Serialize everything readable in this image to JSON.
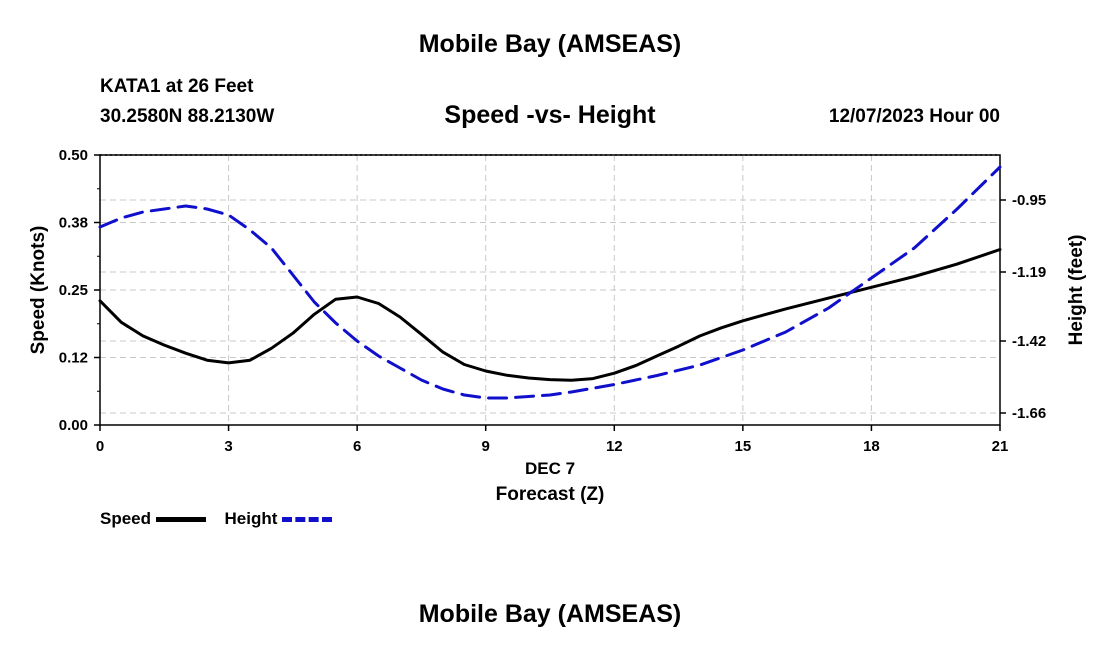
{
  "header": {
    "title": "Mobile Bay (AMSEAS)",
    "station": "KATA1 at 26 Feet",
    "coords": "30.2580N  88.2130W",
    "chart_title": "Speed -vs- Height",
    "datetime": "12/07/2023 Hour 00"
  },
  "footer": {
    "title": "Mobile Bay (AMSEAS)"
  },
  "legend": {
    "speed_label": "Speed",
    "height_label": "Height"
  },
  "colors": {
    "speed": "#000000",
    "height": "#1010cc",
    "grid": "#c8c8c8"
  },
  "chart_data": {
    "type": "line",
    "title": "Speed -vs- Height",
    "xlabel": "Forecast (Z)",
    "date_label": "DEC 7",
    "ylabel": "Speed (Knots)",
    "y2label": "Height (feet)",
    "xlim": [
      0,
      21
    ],
    "ylim": [
      0,
      0.5
    ],
    "y2lim": [
      -1.7,
      -0.8
    ],
    "x_ticks": [
      0,
      3,
      6,
      9,
      12,
      15,
      18,
      21
    ],
    "y_ticks": [
      "0.00",
      "0.12",
      "0.25",
      "0.38",
      "0.50"
    ],
    "y_tick_values": [
      0,
      0.125,
      0.25,
      0.375,
      0.5
    ],
    "y2_ticks": [
      "-0.95",
      "-1.19",
      "-1.42",
      "-1.66"
    ],
    "y2_tick_values": [
      -0.95,
      -1.19,
      -1.42,
      -1.66
    ],
    "grid": true,
    "series": [
      {
        "name": "Speed",
        "axis": "left",
        "x": [
          0,
          0.5,
          1,
          1.5,
          2,
          2.5,
          3,
          3.5,
          4,
          4.5,
          5,
          5.5,
          6,
          6.5,
          7,
          7.5,
          8,
          8.5,
          9,
          9.5,
          10,
          10.5,
          11,
          11.5,
          12,
          12.5,
          13,
          13.5,
          14,
          14.5,
          15,
          16,
          17,
          18,
          19,
          20,
          21
        ],
        "values": [
          0.23,
          0.19,
          0.165,
          0.148,
          0.133,
          0.12,
          0.115,
          0.12,
          0.142,
          0.17,
          0.205,
          0.233,
          0.237,
          0.225,
          0.2,
          0.168,
          0.135,
          0.112,
          0.1,
          0.092,
          0.087,
          0.084,
          0.083,
          0.086,
          0.096,
          0.11,
          0.128,
          0.146,
          0.165,
          0.18,
          0.193,
          0.215,
          0.235,
          0.255,
          0.275,
          0.298,
          0.325
        ]
      },
      {
        "name": "Height",
        "axis": "right",
        "x": [
          0,
          0.5,
          1,
          1.5,
          2,
          2.5,
          3,
          3.5,
          4,
          4.5,
          5,
          5.5,
          6,
          6.5,
          7,
          7.5,
          8,
          8.5,
          9,
          9.5,
          10,
          10.5,
          11,
          12,
          13,
          14,
          15,
          16,
          17,
          18,
          19,
          20,
          21
        ],
        "values": [
          -1.04,
          -1.01,
          -0.99,
          -0.98,
          -0.97,
          -0.98,
          -1.0,
          -1.05,
          -1.11,
          -1.2,
          -1.29,
          -1.36,
          -1.42,
          -1.47,
          -1.51,
          -1.55,
          -1.58,
          -1.6,
          -1.61,
          -1.61,
          -1.605,
          -1.6,
          -1.59,
          -1.565,
          -1.535,
          -1.5,
          -1.45,
          -1.39,
          -1.31,
          -1.21,
          -1.11,
          -0.98,
          -0.84
        ]
      }
    ]
  }
}
